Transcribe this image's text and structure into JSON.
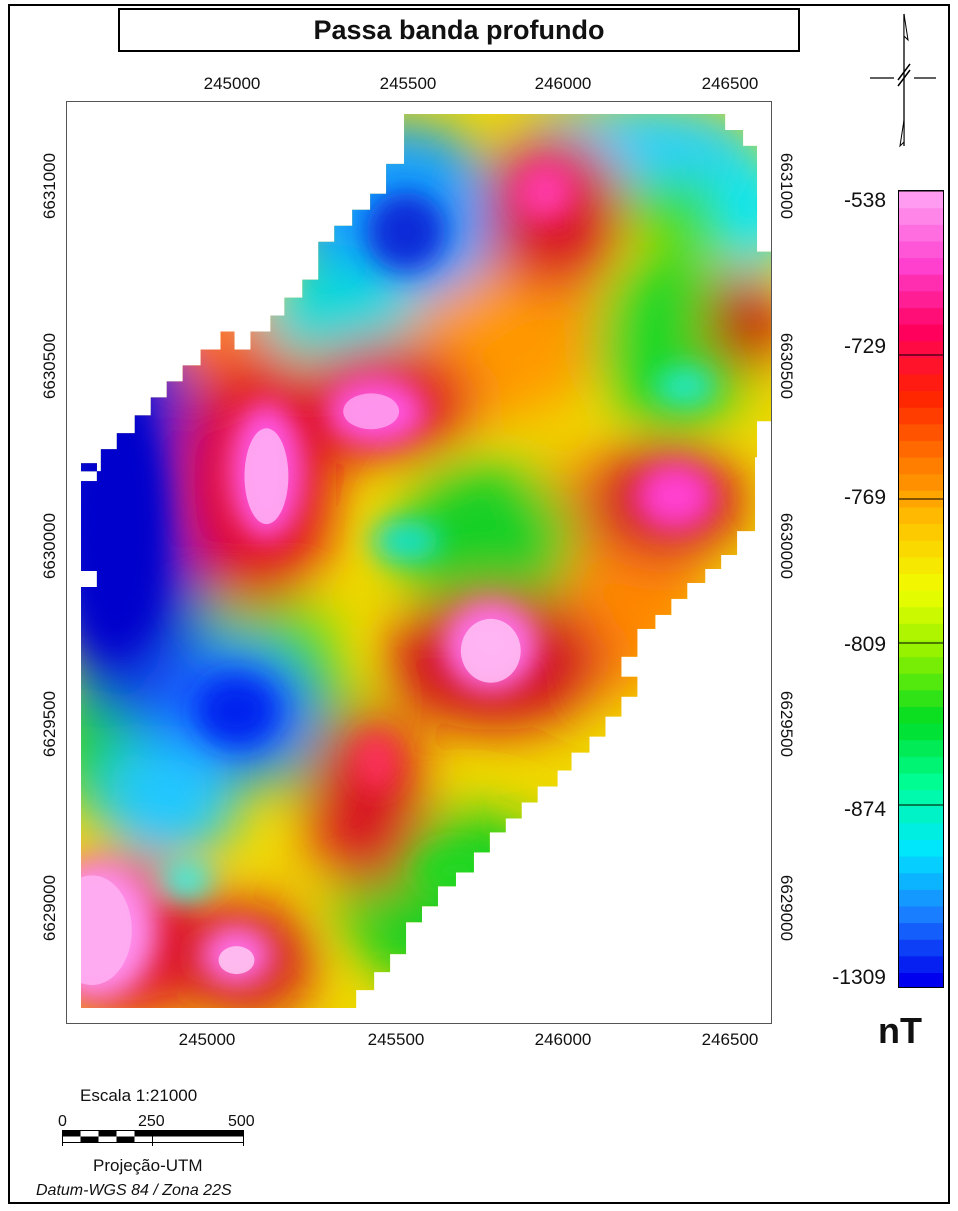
{
  "title": "Passa banda profundo",
  "axes": {
    "easting_ticks": [
      "245000",
      "245500",
      "246000",
      "246500"
    ],
    "northing_ticks": [
      "6631000",
      "6630500",
      "6630000",
      "6629500",
      "6629000"
    ]
  },
  "legend": {
    "labels": [
      "-538",
      "-729",
      "-769",
      "-809",
      "-874",
      "-1309"
    ],
    "unit": "nT",
    "colors": [
      "#0000ee",
      "#1a7cff",
      "#00e5ff",
      "#00ff99",
      "#00dd22",
      "#8cf000",
      "#f0ff00",
      "#ffc400",
      "#ff7700",
      "#ff2200",
      "#ff0060",
      "#ff40d0",
      "#ff9cf2"
    ]
  },
  "scale": {
    "title": "Escala 1:21000",
    "labels": [
      "0",
      "250",
      "500"
    ],
    "projection": "Projeção-UTM",
    "datum": "Datum-WGS 84 / Zona 22S"
  },
  "icons": {
    "north_arrow": "north-arrow-icon"
  }
}
